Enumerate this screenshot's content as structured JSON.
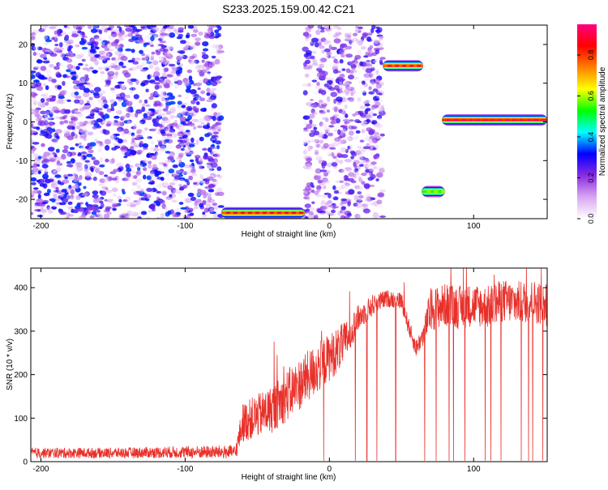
{
  "title": "S233.2025.159.00.42.C21",
  "chart_data": [
    {
      "type": "heatmap",
      "xlabel": "Height of straight line (km)",
      "ylabel": "Frequency (Hz)",
      "xlim": [
        -207,
        151
      ],
      "ylim": [
        -25,
        25
      ],
      "xticks": [
        -200,
        -100,
        0,
        100
      ],
      "yticks": [
        -20,
        -10,
        0,
        10,
        20
      ],
      "colorbar": {
        "label": "Normalized spectral amplitude",
        "range": [
          0,
          0.95
        ],
        "ticks": [
          "0.0",
          "0.2",
          "0.4",
          "0.6",
          "0.8"
        ],
        "colors": [
          "#ffffff",
          "#d9a6f2",
          "#8a2be2",
          "#0000ff",
          "#00ffff",
          "#00ff00",
          "#ffff00",
          "#ff8000",
          "#ff0000",
          "#ff0080"
        ]
      },
      "features": [
        {
          "x_range": [
            -75,
            -17
          ],
          "freq": -23.5,
          "amplitude": 0.9
        },
        {
          "x_range": [
            37,
            65
          ],
          "freq": 14.5,
          "amplitude": 0.9
        },
        {
          "x_range": [
            64,
            80
          ],
          "freq": -18,
          "amplitude": 0.6
        },
        {
          "x_range": [
            78,
            151
          ],
          "freq": 0.5,
          "amplitude": 0.95
        }
      ],
      "noise_regions": [
        {
          "x_range": [
            -207,
            -75
          ],
          "amplitude": 0.35
        },
        {
          "x_range": [
            -17,
            37
          ],
          "amplitude": 0.3
        }
      ],
      "grid": false
    },
    {
      "type": "line",
      "xlabel": "Height of straight line (km)",
      "ylabel": "SNR (10 * v/v)",
      "xlim": [
        -207,
        151
      ],
      "ylim": [
        0,
        445
      ],
      "xticks": [
        -200,
        -100,
        0,
        100
      ],
      "yticks": [
        0,
        100,
        200,
        300,
        400
      ],
      "series": [
        {
          "color": "#e8302a",
          "x": [
            -207,
            -150,
            -100,
            -65,
            -60,
            -40,
            -30,
            -20,
            -10,
            0,
            10,
            15,
            20,
            30,
            40,
            50,
            55,
            60,
            65,
            70,
            80,
            90,
            100,
            110,
            120,
            130,
            140,
            151
          ],
          "y": [
            20,
            20,
            22,
            22,
            90,
            120,
            150,
            180,
            210,
            240,
            270,
            300,
            330,
            360,
            375,
            370,
            310,
            260,
            290,
            350,
            360,
            355,
            360,
            355,
            370,
            365,
            370,
            360
          ],
          "noise": [
            12,
            12,
            14,
            16,
            45,
            55,
            60,
            60,
            60,
            55,
            50,
            40,
            30,
            25,
            20,
            20,
            20,
            20,
            25,
            50,
            50,
            50,
            50,
            50,
            50,
            50,
            50,
            50
          ]
        }
      ],
      "dropouts": [
        -4,
        18,
        26,
        33,
        46,
        66,
        74,
        83,
        86,
        94,
        108,
        112,
        119,
        133,
        138,
        141,
        148
      ],
      "grid": false
    }
  ]
}
